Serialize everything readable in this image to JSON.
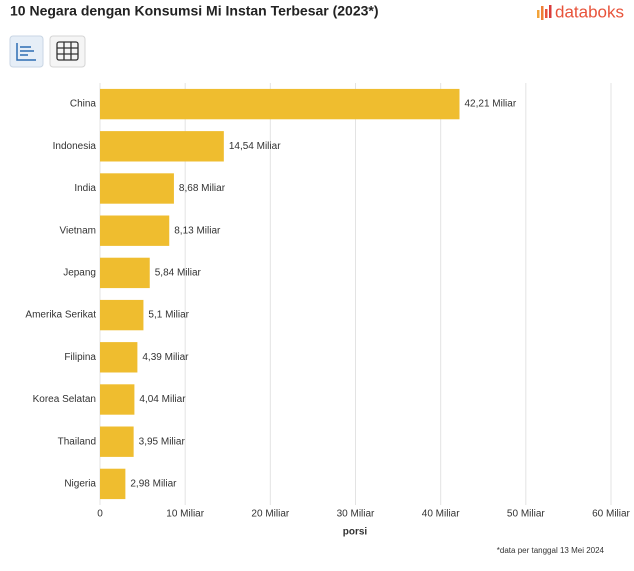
{
  "brand": "databoks",
  "chart_data": {
    "type": "bar",
    "title": "10 Negara dengan Konsumsi Mi Instan Terbesar (2023*)",
    "categories": [
      "China",
      "Indonesia",
      "India",
      "Vietnam",
      "Jepang",
      "Amerika Serikat",
      "Filipina",
      "Korea Selatan",
      "Thailand",
      "Nigeria"
    ],
    "values": [
      42.21,
      14.54,
      8.68,
      8.13,
      5.84,
      5.1,
      4.39,
      4.04,
      3.95,
      2.98
    ],
    "value_labels": [
      "42,21 Miliar",
      "14,54 Miliar",
      "8,68 Miliar",
      "8,13 Miliar",
      "5,84 Miliar",
      "5,1 Miliar",
      "4,39 Miliar",
      "4,04 Miliar",
      "3,95 Miliar",
      "2,98 Miliar"
    ],
    "color": "#efbd2f",
    "xlabel": "porsi",
    "xlim": [
      0,
      60
    ],
    "xticks": [
      0,
      {
        "value": 10,
        "label": "10 Miliar"
      },
      {
        "value": 20,
        "label": "20 Miliar"
      },
      {
        "value": 30,
        "label": "30 Miliar"
      },
      {
        "value": 40,
        "label": "40 Miliar"
      },
      {
        "value": 50,
        "label": "50 Miliar"
      },
      {
        "value": 60,
        "label": "60 Miliar"
      }
    ],
    "grid": true,
    "note": "*data per tanggal 13 Mei 2024"
  }
}
